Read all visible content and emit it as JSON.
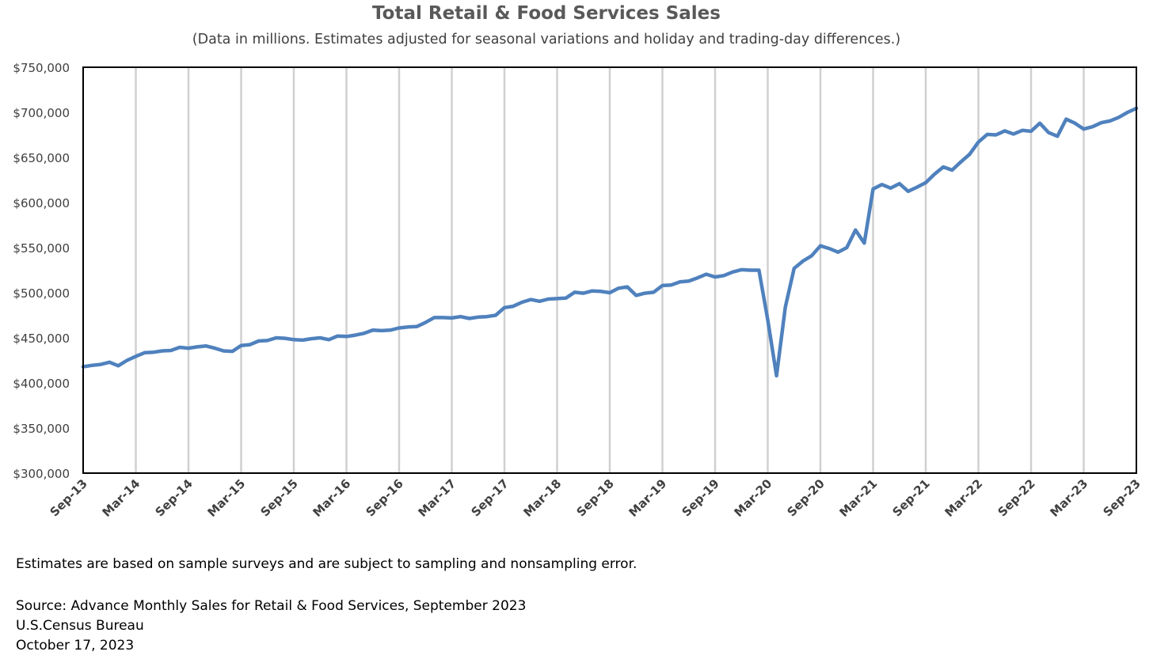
{
  "chart_data": {
    "type": "line",
    "title": "Total Retail & Food Services Sales",
    "subtitle": "(Data in millions. Estimates adjusted for seasonal variations and holiday and trading-day differences.)",
    "xlabel": "",
    "ylabel": "",
    "ylim": [
      300000,
      750000
    ],
    "yticks": [
      300000,
      350000,
      400000,
      450000,
      500000,
      550000,
      600000,
      650000,
      700000,
      750000
    ],
    "ytick_labels": [
      "$300,000",
      "$350,000",
      "$400,000",
      "$450,000",
      "$500,000",
      "$550,000",
      "$600,000",
      "$650,000",
      "$700,000",
      "$750,000"
    ],
    "x_start": "2013-09",
    "x_end": "2023-09",
    "xtick_labels": [
      "Sep-13",
      "Mar-14",
      "Sep-14",
      "Mar-15",
      "Sep-15",
      "Mar-16",
      "Sep-16",
      "Mar-17",
      "Sep-17",
      "Mar-18",
      "Sep-18",
      "Mar-19",
      "Sep-19",
      "Mar-20",
      "Sep-20",
      "Mar-21",
      "Sep-21",
      "Mar-22",
      "Sep-22",
      "Mar-23",
      "Sep-23"
    ],
    "grid": "vertical",
    "legend": "none",
    "series": [
      {
        "color": "#4f81bd",
        "values": [
          418000,
          419500,
          420500,
          423000,
          419000,
          425000,
          429500,
          433500,
          434000,
          435500,
          436000,
          439500,
          438500,
          440000,
          441000,
          438500,
          435500,
          435000,
          441500,
          442500,
          446500,
          447000,
          450000,
          449500,
          448000,
          447500,
          449000,
          450000,
          448000,
          452000,
          451500,
          453000,
          455000,
          458500,
          458000,
          458500,
          461000,
          462000,
          462500,
          467000,
          472500,
          472500,
          472000,
          473500,
          471500,
          473000,
          473500,
          475000,
          483500,
          485000,
          489500,
          492500,
          490500,
          493000,
          493500,
          494000,
          500500,
          499500,
          502000,
          501500,
          500000,
          505000,
          506500,
          497000,
          499500,
          500500,
          508000,
          508500,
          512000,
          513000,
          516500,
          520500,
          517500,
          519000,
          523000,
          525500,
          525000,
          525000,
          470000,
          408000,
          484000,
          527000,
          535000,
          541000,
          552000,
          549000,
          545000,
          550000,
          569500,
          555000,
          615000,
          620000,
          616000,
          621000,
          612500,
          617000,
          622000,
          631500,
          639500,
          636000,
          645000,
          653500,
          667000,
          675500,
          675000,
          679500,
          676000,
          680000,
          679000,
          688000,
          677500,
          673500,
          692500,
          688000,
          681500,
          684000,
          688500,
          690500,
          694500,
          700000,
          704500
        ]
      }
    ]
  },
  "footer": {
    "note": "Estimates are based on sample surveys and are subject to sampling and nonsampling error.",
    "source_line1": "Source: Advance Monthly Sales for Retail & Food Services, September 2023",
    "source_line2": "U.S.Census Bureau",
    "source_line3": "October 17, 2023"
  }
}
